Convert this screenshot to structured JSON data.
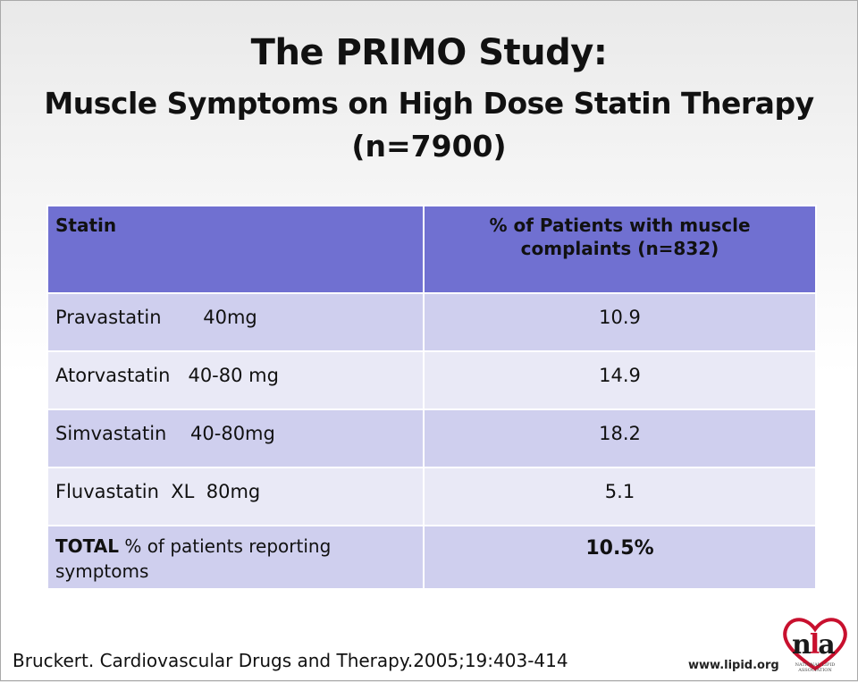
{
  "slide": {
    "title_line1": "The PRIMO Study:",
    "title_line2": "Muscle Symptoms on High Dose Statin Therapy",
    "title_line3": "(n=7900)"
  },
  "table": {
    "header": {
      "col1": "Statin",
      "col2": "% of Patients with muscle complaints (n=832)"
    },
    "rows": [
      {
        "statin": "Pravastatin       40mg",
        "percent": "10.9"
      },
      {
        "statin": "Atorvastatin   40-80 mg",
        "percent": "14.9"
      },
      {
        "statin": "Simvastatin    40-80mg",
        "percent": "18.2"
      },
      {
        "statin": "Fluvastatin  XL  80mg",
        "percent": "5.1"
      }
    ],
    "total": {
      "label_bold": "TOTAL",
      "label_rest": " % of patients reporting symptoms",
      "percent": "10.5%"
    }
  },
  "footer": {
    "citation": "Bruckert. Cardiovascular Drugs and Therapy.2005;19:403-414",
    "url": "www.lipid.org",
    "logo_text": "nla",
    "logo_subtext": "NATIONAL LIPID ASSOCIATION"
  },
  "colors": {
    "header_bg": "#7070d1",
    "row_odd_bg": "#cfcfee",
    "row_even_bg": "#e9e9f6",
    "logo_accent": "#c8102e"
  }
}
